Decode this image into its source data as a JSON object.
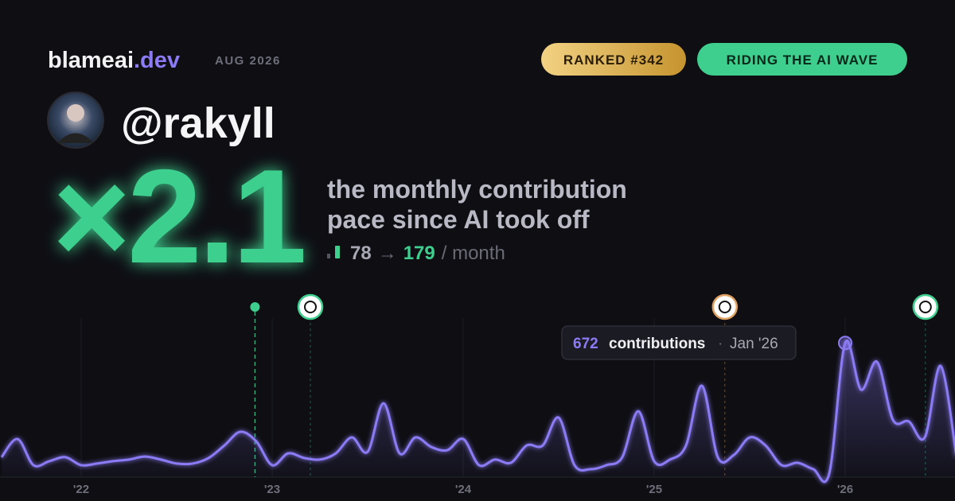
{
  "header": {
    "brand": "blameai",
    "brand_suffix": ".dev",
    "period": "AUG 2026",
    "badges": [
      "RANKED #342",
      "RIDING THE AI WAVE"
    ]
  },
  "profile": {
    "handle": "@rakyll"
  },
  "headline": {
    "multiplier": "×2.1",
    "description": [
      "the monthly contribution",
      "pace since AI took off"
    ],
    "before": "78",
    "arrow": "→",
    "after": "179",
    "unit": "/ month"
  },
  "tooltip": {
    "label": "contributions",
    "separator": "·",
    "date": "Jan '26"
  },
  "chart_data": {
    "type": "line",
    "x": [
      2021.583,
      2021.667,
      2021.75,
      2021.833,
      2021.917,
      2022.0,
      2022.083,
      2022.167,
      2022.25,
      2022.333,
      2022.417,
      2022.5,
      2022.583,
      2022.667,
      2022.75,
      2022.833,
      2022.917,
      2023.0,
      2023.083,
      2023.167,
      2023.25,
      2023.333,
      2023.417,
      2023.5,
      2023.583,
      2023.667,
      2023.75,
      2023.833,
      2023.917,
      2024.0,
      2024.083,
      2024.167,
      2024.25,
      2024.333,
      2024.417,
      2024.5,
      2024.583,
      2024.667,
      2024.75,
      2024.833,
      2024.917,
      2025.0,
      2025.083,
      2025.167,
      2025.25,
      2025.333,
      2025.417,
      2025.5,
      2025.583,
      2025.667,
      2025.75,
      2025.833,
      2025.917,
      2026.0,
      2026.083,
      2026.167,
      2026.25,
      2026.333,
      2026.417,
      2026.5,
      2026.583
    ],
    "series": [
      {
        "name": "contributions",
        "color": "#8b7cf6",
        "values": [
          100,
          191,
          60,
          80,
          100,
          60,
          68,
          80,
          88,
          103,
          88,
          68,
          68,
          96,
          159,
          227,
          179,
          60,
          119,
          96,
          88,
          119,
          199,
          127,
          370,
          119,
          199,
          151,
          135,
          191,
          60,
          88,
          72,
          159,
          159,
          298,
          60,
          40,
          60,
          100,
          330,
          80,
          88,
          159,
          458,
          100,
          111,
          199,
          159,
          60,
          72,
          40,
          20,
          672,
          438,
          577,
          287,
          279,
          199,
          557,
          100
        ]
      }
    ],
    "xlim": [
      2021.575,
      2026.575
    ],
    "ylim": [
      0,
      880
    ],
    "xticks": [
      {
        "value": 2022,
        "label": "'22"
      },
      {
        "value": 2023,
        "label": "'23"
      },
      {
        "value": 2024,
        "label": "'24"
      },
      {
        "value": 2025,
        "label": "'25"
      },
      {
        "value": 2026,
        "label": "'26"
      }
    ],
    "highlight": 53,
    "events": [
      {
        "x": 2022.91,
        "color": "#3ecf8e"
      },
      {
        "x": 2023.2,
        "color": "#3ecf8e"
      },
      {
        "x": 2025.37,
        "color": "#e0a060"
      },
      {
        "x": 2026.42,
        "color": "#3ecf8e"
      }
    ]
  }
}
